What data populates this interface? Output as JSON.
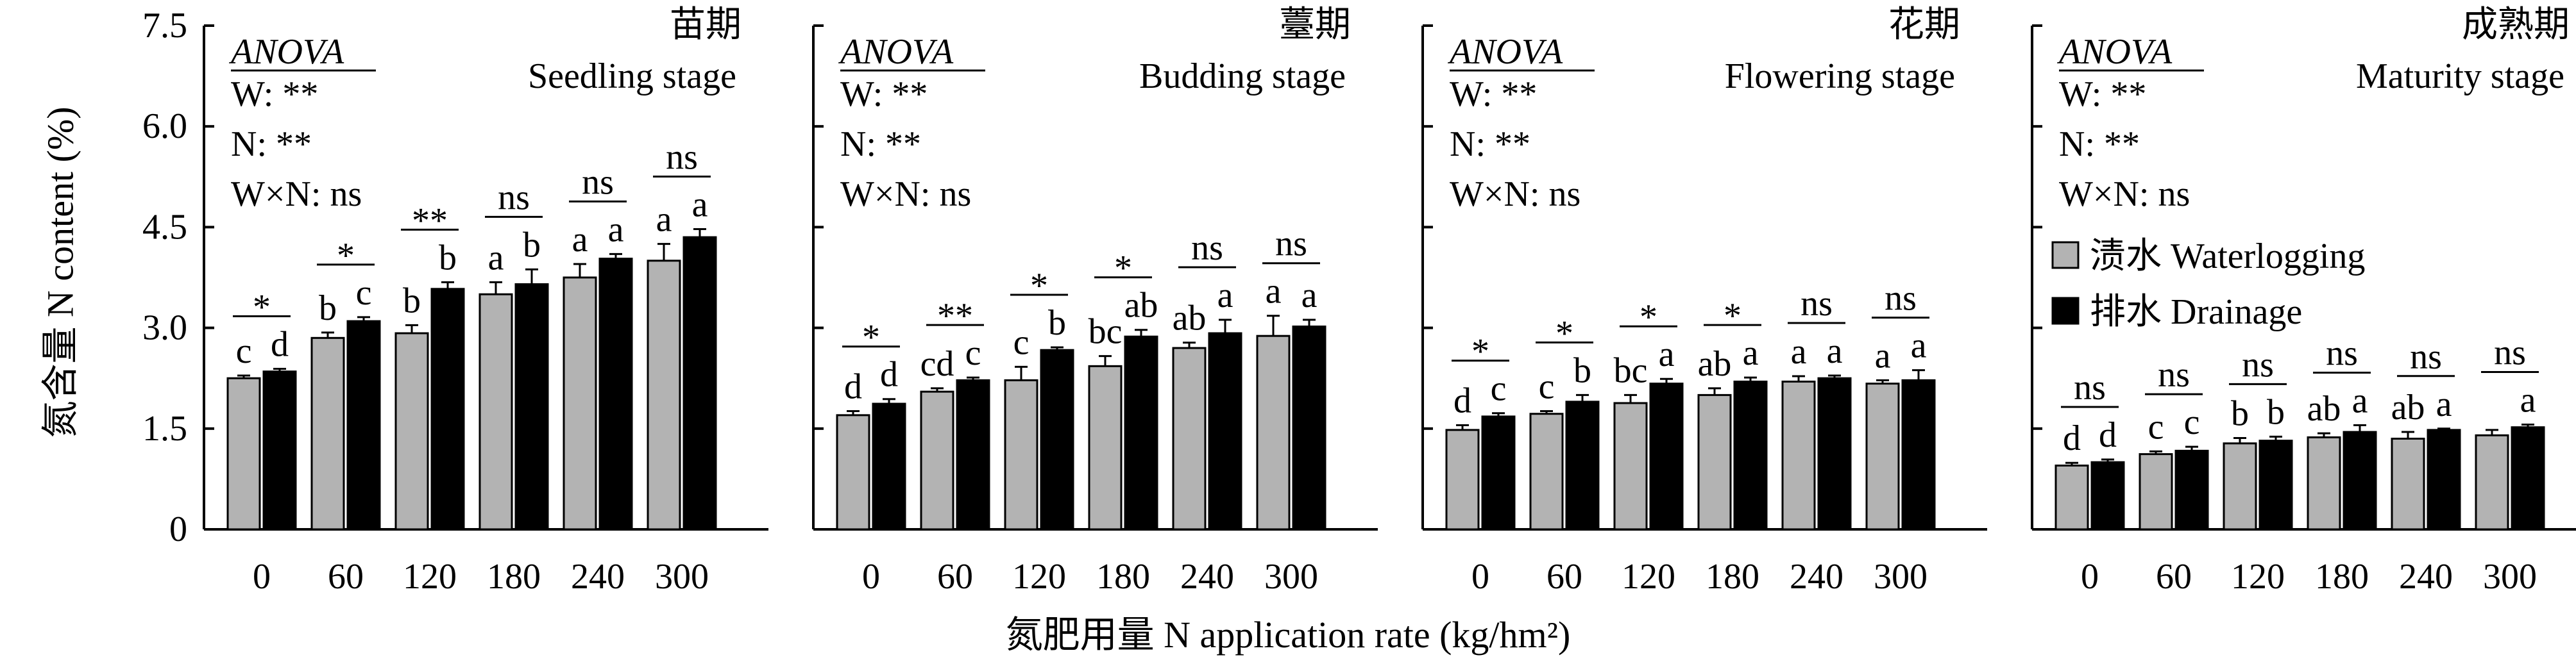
{
  "chart_data": {
    "type": "bar",
    "y_label": "氮含量 N content (%)",
    "x_label": "氮肥用量 N application rate (kg/hm²)",
    "ylim": [
      0,
      7.5
    ],
    "yticks": [
      "0",
      "1.5",
      "3.0",
      "4.5",
      "6.0",
      "7.5"
    ],
    "categories": [
      "0",
      "60",
      "120",
      "180",
      "240",
      "300"
    ],
    "series_names": [
      "渍水 Waterlogging",
      "排水 Drainage"
    ],
    "colors": {
      "waterlogging": "#b3b3b3",
      "drainage": "#000000"
    },
    "anova": {
      "title": "ANOVA",
      "lines": [
        "W: **",
        "N: **",
        "W×N: ns"
      ]
    },
    "legend": {
      "waterlogging": "渍水 Waterlogging",
      "drainage": "排水 Drainage"
    },
    "panels": [
      {
        "title_cn": "苗期",
        "title_en": "Seedling stage",
        "waterlogging": [
          2.25,
          2.85,
          2.92,
          3.5,
          3.75,
          4.0
        ],
        "waterlogging_err": [
          0.04,
          0.08,
          0.12,
          0.18,
          0.2,
          0.25
        ],
        "drainage": [
          2.35,
          3.1,
          3.58,
          3.65,
          4.03,
          4.35
        ],
        "drainage_err": [
          0.04,
          0.06,
          0.1,
          0.22,
          0.07,
          0.12
        ],
        "letters_w": [
          "c",
          "b",
          "b",
          "a",
          "a",
          "a"
        ],
        "letters_d": [
          "d",
          "c",
          "b",
          "b",
          "a",
          "a"
        ],
        "sig": [
          "*",
          "*",
          "**",
          "ns",
          "ns",
          "ns"
        ]
      },
      {
        "title_cn": "薹期",
        "title_en": "Budding stage",
        "waterlogging": [
          1.7,
          2.05,
          2.22,
          2.43,
          2.7,
          2.88
        ],
        "waterlogging_err": [
          0.06,
          0.05,
          0.2,
          0.15,
          0.08,
          0.3
        ],
        "drainage": [
          1.87,
          2.22,
          2.67,
          2.87,
          2.92,
          3.02
        ],
        "drainage_err": [
          0.07,
          0.04,
          0.04,
          0.1,
          0.2,
          0.1
        ],
        "letters_w": [
          "d",
          "cd",
          "c",
          "bc",
          "ab",
          "a"
        ],
        "letters_d": [
          "d",
          "c",
          "b",
          "ab",
          "a",
          "a"
        ],
        "sig": [
          "*",
          "**",
          "*",
          "*",
          "ns",
          "ns"
        ]
      },
      {
        "title_cn": "花期",
        "title_en": "Flowering stage",
        "waterlogging": [
          1.48,
          1.72,
          1.88,
          2.0,
          2.2,
          2.17
        ],
        "waterlogging_err": [
          0.07,
          0.04,
          0.12,
          0.1,
          0.08,
          0.05
        ],
        "drainage": [
          1.68,
          1.9,
          2.17,
          2.2,
          2.25,
          2.22
        ],
        "drainage_err": [
          0.05,
          0.1,
          0.07,
          0.06,
          0.04,
          0.15
        ],
        "letters_w": [
          "d",
          "c",
          "bc",
          "ab",
          "a",
          "a"
        ],
        "letters_d": [
          "c",
          "b",
          "a",
          "a",
          "a",
          "a"
        ],
        "sig": [
          "*",
          "*",
          "*",
          "*",
          "ns",
          "ns"
        ]
      },
      {
        "title_cn": "成熟期",
        "title_en": "Maturity stage",
        "waterlogging": [
          0.95,
          1.12,
          1.28,
          1.37,
          1.35,
          1.4
        ],
        "waterlogging_err": [
          0.04,
          0.04,
          0.08,
          0.06,
          0.1,
          0.08
        ],
        "drainage": [
          1.0,
          1.17,
          1.32,
          1.45,
          1.48,
          1.52
        ],
        "drainage_err": [
          0.04,
          0.06,
          0.06,
          0.1,
          0.02,
          0.04
        ],
        "letters_w": [
          "d",
          "c",
          "b",
          "ab",
          "ab",
          ""
        ],
        "letters_d": [
          "d",
          "c",
          "b",
          "a",
          "a",
          "a"
        ],
        "sig": [
          "ns",
          "ns",
          "ns",
          "ns",
          "ns",
          "ns"
        ]
      }
    ]
  }
}
